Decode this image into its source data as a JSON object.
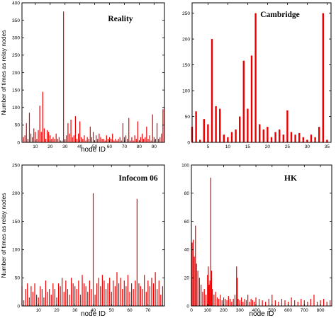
{
  "chart_data": [
    {
      "type": "bar",
      "title": "Reality",
      "xlabel": "node ID",
      "ylabel": "Number of times as relay nodes",
      "xlim": [
        1,
        97
      ],
      "ylim": [
        0,
        400
      ],
      "xticks": [
        10,
        20,
        30,
        40,
        50,
        60,
        70,
        80,
        90
      ],
      "yticks": [
        0,
        50,
        100,
        150,
        200,
        250,
        300,
        350,
        400
      ],
      "grid": false,
      "color": "#ee0000",
      "x": [
        2,
        3,
        4,
        5,
        6,
        7,
        8,
        9,
        10,
        11,
        12,
        13,
        14,
        15,
        16,
        17,
        18,
        19,
        20,
        21,
        22,
        23,
        24,
        25,
        26,
        27,
        28,
        29,
        30,
        31,
        32,
        33,
        34,
        35,
        36,
        37,
        38,
        39,
        40,
        41,
        42,
        43,
        44,
        45,
        46,
        47,
        48,
        49,
        50,
        51,
        52,
        53,
        54,
        55,
        56,
        57,
        58,
        59,
        60,
        61,
        62,
        63,
        64,
        65,
        66,
        67,
        68,
        69,
        70,
        71,
        72,
        73,
        74,
        75,
        76,
        77,
        78,
        79,
        80,
        81,
        82,
        83,
        84,
        85,
        86,
        87,
        88,
        89,
        90,
        91,
        92,
        93,
        94,
        95,
        96,
        97
      ],
      "values": [
        15,
        20,
        55,
        10,
        85,
        25,
        15,
        40,
        30,
        10,
        35,
        105,
        30,
        145,
        40,
        10,
        35,
        30,
        20,
        10,
        15,
        10,
        25,
        10,
        15,
        5,
        5,
        375,
        10,
        20,
        55,
        25,
        65,
        15,
        20,
        75,
        10,
        25,
        60,
        15,
        10,
        20,
        5,
        15,
        10,
        45,
        15,
        30,
        5,
        20,
        10,
        25,
        15,
        10,
        10,
        5,
        20,
        10,
        15,
        10,
        25,
        5,
        10,
        5,
        10,
        15,
        5,
        55,
        15,
        20,
        10,
        70,
        5,
        15,
        5,
        20,
        10,
        60,
        5,
        15,
        25,
        10,
        15,
        45,
        10,
        20,
        5,
        80,
        15,
        10,
        55,
        10,
        15,
        25,
        95,
        100
      ]
    },
    {
      "type": "bar",
      "title": "Cambridge",
      "xlabel": "",
      "ylabel": "",
      "xlim": [
        1,
        36
      ],
      "ylim": [
        0,
        270
      ],
      "xticks": [
        5,
        10,
        15,
        20,
        25,
        30,
        35
      ],
      "yticks": [
        0,
        50,
        100,
        150,
        200,
        250
      ],
      "grid": false,
      "color": "#ee0000",
      "x": [
        1,
        2,
        3,
        4,
        5,
        6,
        7,
        8,
        9,
        10,
        11,
        12,
        13,
        14,
        15,
        16,
        17,
        18,
        19,
        20,
        21,
        22,
        23,
        24,
        25,
        26,
        27,
        28,
        29,
        30,
        31,
        32,
        33,
        34,
        35
      ],
      "values": [
        30,
        60,
        5,
        45,
        35,
        200,
        70,
        65,
        15,
        10,
        20,
        25,
        50,
        158,
        65,
        168,
        250,
        35,
        25,
        30,
        10,
        20,
        25,
        15,
        62,
        20,
        15,
        18,
        10,
        5,
        15,
        10,
        30,
        250,
        5
      ]
    },
    {
      "type": "bar",
      "title": "Infocom 06",
      "xlabel": "node ID",
      "ylabel": "Number of times as relay nodes",
      "xlim": [
        1,
        79
      ],
      "ylim": [
        0,
        250
      ],
      "xticks": [
        10,
        20,
        30,
        40,
        50,
        60,
        70
      ],
      "yticks": [
        0,
        50,
        100,
        150,
        200,
        250
      ],
      "grid": false,
      "color": "#ee0000",
      "x": [
        1,
        2,
        3,
        4,
        5,
        6,
        7,
        8,
        9,
        10,
        11,
        12,
        13,
        14,
        15,
        16,
        17,
        18,
        19,
        20,
        21,
        22,
        23,
        24,
        25,
        26,
        27,
        28,
        29,
        30,
        31,
        32,
        33,
        34,
        35,
        36,
        37,
        38,
        39,
        40,
        41,
        42,
        43,
        44,
        45,
        46,
        47,
        48,
        49,
        50,
        51,
        52,
        53,
        54,
        55,
        56,
        57,
        58,
        59,
        60,
        61,
        62,
        63,
        64,
        65,
        66,
        67,
        68,
        69,
        70,
        71,
        72,
        73,
        74,
        75,
        76,
        77,
        78
      ],
      "values": [
        35,
        10,
        30,
        40,
        15,
        35,
        25,
        40,
        20,
        15,
        35,
        30,
        15,
        45,
        25,
        30,
        20,
        40,
        30,
        15,
        40,
        35,
        50,
        25,
        45,
        30,
        20,
        50,
        40,
        35,
        30,
        45,
        20,
        55,
        40,
        35,
        25,
        45,
        30,
        200,
        20,
        40,
        50,
        35,
        55,
        45,
        30,
        40,
        50,
        25,
        45,
        35,
        60,
        40,
        50,
        30,
        45,
        35,
        55,
        25,
        40,
        30,
        45,
        190,
        40,
        35,
        30,
        55,
        25,
        45,
        35,
        50,
        40,
        60,
        30,
        45,
        20,
        35
      ]
    },
    {
      "type": "bar",
      "title": "HK",
      "xlabel": "node ID",
      "ylabel": "",
      "xlim": [
        0,
        870
      ],
      "ylim": [
        0,
        100
      ],
      "xticks": [
        0,
        100,
        200,
        300,
        400,
        500,
        600,
        700,
        800
      ],
      "yticks": [
        0,
        20,
        40,
        60,
        80,
        100
      ],
      "grid": false,
      "color": "#ee0000",
      "x": [
        5,
        12,
        18,
        25,
        32,
        40,
        50,
        60,
        70,
        80,
        90,
        100,
        105,
        110,
        115,
        120,
        125,
        130,
        140,
        150,
        160,
        170,
        180,
        190,
        200,
        210,
        220,
        230,
        240,
        250,
        260,
        270,
        280,
        285,
        290,
        300,
        310,
        320,
        330,
        340,
        350,
        360,
        370,
        380,
        390,
        400,
        420,
        440,
        460,
        480,
        500,
        520,
        540,
        560,
        580,
        600,
        620,
        640,
        660,
        680,
        700,
        720,
        740,
        760,
        780,
        800,
        820,
        840,
        860
      ],
      "values": [
        45,
        47,
        35,
        57,
        30,
        25,
        20,
        15,
        10,
        12,
        8,
        22,
        28,
        15,
        18,
        91,
        25,
        12,
        8,
        10,
        6,
        5,
        8,
        4,
        6,
        5,
        4,
        7,
        5,
        3,
        5,
        8,
        28,
        20,
        5,
        4,
        6,
        3,
        5,
        4,
        8,
        3,
        5,
        4,
        3,
        6,
        5,
        4,
        3,
        5,
        8,
        4,
        3,
        5,
        4,
        3,
        6,
        4,
        3,
        5,
        4,
        3,
        5,
        8,
        3,
        4,
        5,
        3,
        4
      ]
    }
  ]
}
